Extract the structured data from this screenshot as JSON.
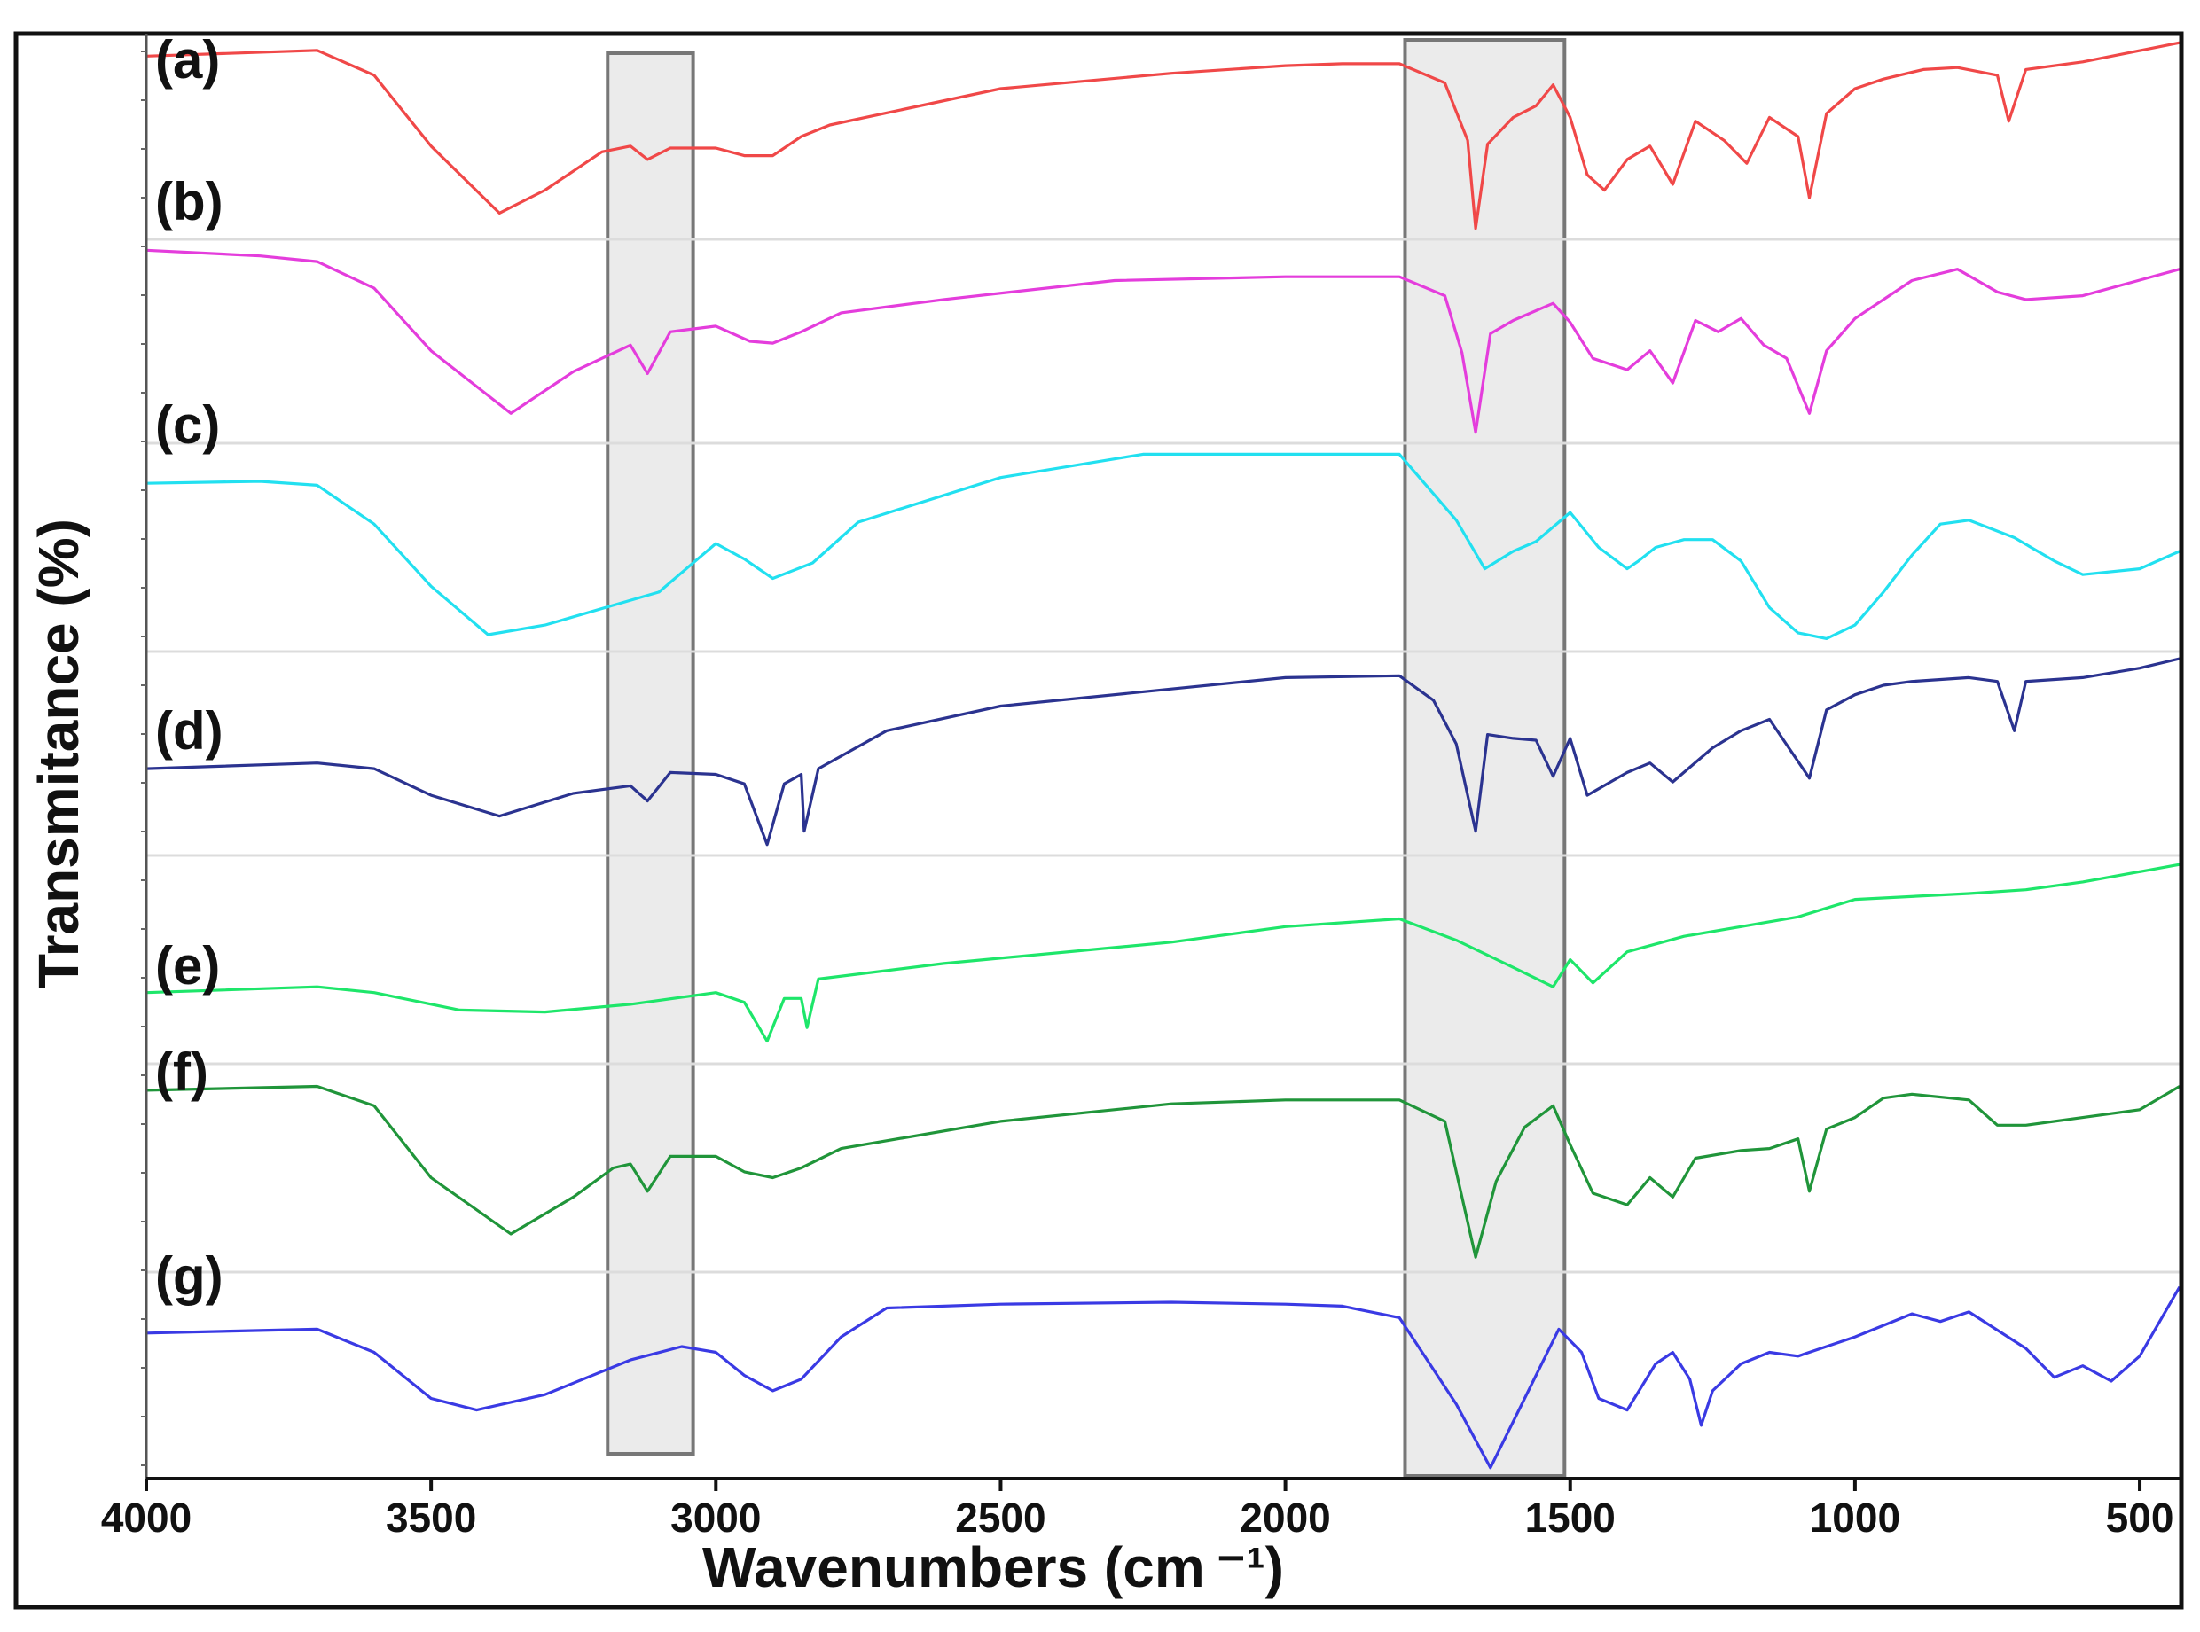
{
  "chart_data": {
    "type": "line",
    "xlabel": "Wavenumbers (cm ⁻¹)",
    "ylabel": "Transmitance (%)",
    "xlim": [
      4000,
      430
    ],
    "x_reversed": true,
    "x_ticks": [
      4000,
      3500,
      3000,
      2500,
      2000,
      1500,
      1000,
      500
    ],
    "grid": "horizontal separators between stacked spectra",
    "highlight_bands": [
      {
        "x_from": 3190,
        "x_to": 3040
      },
      {
        "x_from": 1790,
        "x_to": 1510
      }
    ],
    "series": [
      {
        "name": "(a)",
        "color": "#f04848",
        "points": [
          [
            4000,
            0.92
          ],
          [
            3700,
            0.95
          ],
          [
            3600,
            0.82
          ],
          [
            3500,
            0.45
          ],
          [
            3380,
            0.1
          ],
          [
            3300,
            0.22
          ],
          [
            3200,
            0.42
          ],
          [
            3150,
            0.45
          ],
          [
            3120,
            0.38
          ],
          [
            3080,
            0.44
          ],
          [
            3000,
            0.44
          ],
          [
            2950,
            0.4
          ],
          [
            2900,
            0.4
          ],
          [
            2850,
            0.5
          ],
          [
            2800,
            0.56
          ],
          [
            2500,
            0.75
          ],
          [
            2200,
            0.83
          ],
          [
            2000,
            0.87
          ],
          [
            1900,
            0.88
          ],
          [
            1800,
            0.88
          ],
          [
            1720,
            0.78
          ],
          [
            1680,
            0.48
          ],
          [
            1666,
            0.02
          ],
          [
            1645,
            0.46
          ],
          [
            1600,
            0.6
          ],
          [
            1560,
            0.66
          ],
          [
            1530,
            0.77
          ],
          [
            1500,
            0.6
          ],
          [
            1470,
            0.3
          ],
          [
            1440,
            0.22
          ],
          [
            1400,
            0.38
          ],
          [
            1360,
            0.45
          ],
          [
            1320,
            0.25
          ],
          [
            1280,
            0.58
          ],
          [
            1230,
            0.48
          ],
          [
            1190,
            0.36
          ],
          [
            1150,
            0.6
          ],
          [
            1100,
            0.5
          ],
          [
            1080,
            0.18
          ],
          [
            1050,
            0.62
          ],
          [
            1000,
            0.75
          ],
          [
            950,
            0.8
          ],
          [
            880,
            0.85
          ],
          [
            820,
            0.86
          ],
          [
            750,
            0.82
          ],
          [
            730,
            0.58
          ],
          [
            700,
            0.85
          ],
          [
            600,
            0.89
          ],
          [
            430,
            0.99
          ]
        ]
      },
      {
        "name": "(b)",
        "color": "#e43ddc",
        "points": [
          [
            4000,
            0.98
          ],
          [
            3800,
            0.95
          ],
          [
            3700,
            0.92
          ],
          [
            3600,
            0.78
          ],
          [
            3500,
            0.45
          ],
          [
            3360,
            0.12
          ],
          [
            3250,
            0.34
          ],
          [
            3150,
            0.48
          ],
          [
            3120,
            0.33
          ],
          [
            3080,
            0.55
          ],
          [
            3000,
            0.58
          ],
          [
            2940,
            0.5
          ],
          [
            2900,
            0.49
          ],
          [
            2850,
            0.55
          ],
          [
            2780,
            0.65
          ],
          [
            2600,
            0.72
          ],
          [
            2300,
            0.82
          ],
          [
            2000,
            0.84
          ],
          [
            1800,
            0.84
          ],
          [
            1720,
            0.74
          ],
          [
            1690,
            0.44
          ],
          [
            1666,
            0.02
          ],
          [
            1640,
            0.54
          ],
          [
            1600,
            0.61
          ],
          [
            1530,
            0.7
          ],
          [
            1500,
            0.6
          ],
          [
            1460,
            0.41
          ],
          [
            1400,
            0.35
          ],
          [
            1360,
            0.45
          ],
          [
            1320,
            0.28
          ],
          [
            1280,
            0.61
          ],
          [
            1240,
            0.55
          ],
          [
            1200,
            0.62
          ],
          [
            1160,
            0.48
          ],
          [
            1120,
            0.41
          ],
          [
            1080,
            0.12
          ],
          [
            1050,
            0.45
          ],
          [
            1000,
            0.62
          ],
          [
            900,
            0.82
          ],
          [
            820,
            0.88
          ],
          [
            750,
            0.76
          ],
          [
            700,
            0.72
          ],
          [
            600,
            0.74
          ],
          [
            430,
            0.88
          ]
        ]
      },
      {
        "name": "(c)",
        "color": "#22e0f0",
        "points": [
          [
            4000,
            0.83
          ],
          [
            3800,
            0.84
          ],
          [
            3700,
            0.82
          ],
          [
            3600,
            0.62
          ],
          [
            3500,
            0.3
          ],
          [
            3400,
            0.05
          ],
          [
            3300,
            0.1
          ],
          [
            3100,
            0.27
          ],
          [
            3000,
            0.52
          ],
          [
            2950,
            0.44
          ],
          [
            2900,
            0.34
          ],
          [
            2830,
            0.42
          ],
          [
            2750,
            0.63
          ],
          [
            2500,
            0.86
          ],
          [
            2250,
            0.98
          ],
          [
            2000,
            0.98
          ],
          [
            1800,
            0.98
          ],
          [
            1700,
            0.64
          ],
          [
            1650,
            0.39
          ],
          [
            1600,
            0.48
          ],
          [
            1560,
            0.53
          ],
          [
            1500,
            0.68
          ],
          [
            1450,
            0.5
          ],
          [
            1400,
            0.39
          ],
          [
            1380,
            0.43
          ],
          [
            1350,
            0.5
          ],
          [
            1300,
            0.54
          ],
          [
            1250,
            0.54
          ],
          [
            1200,
            0.43
          ],
          [
            1150,
            0.19
          ],
          [
            1100,
            0.06
          ],
          [
            1050,
            0.03
          ],
          [
            1000,
            0.1
          ],
          [
            950,
            0.27
          ],
          [
            900,
            0.46
          ],
          [
            850,
            0.62
          ],
          [
            800,
            0.64
          ],
          [
            720,
            0.55
          ],
          [
            650,
            0.43
          ],
          [
            600,
            0.36
          ],
          [
            500,
            0.39
          ],
          [
            430,
            0.48
          ]
        ]
      },
      {
        "name": "(d)",
        "color": "#2b3390",
        "points": [
          [
            4000,
            0.42
          ],
          [
            3700,
            0.45
          ],
          [
            3600,
            0.42
          ],
          [
            3500,
            0.28
          ],
          [
            3380,
            0.17
          ],
          [
            3250,
            0.29
          ],
          [
            3150,
            0.33
          ],
          [
            3120,
            0.25
          ],
          [
            3080,
            0.4
          ],
          [
            3000,
            0.39
          ],
          [
            2950,
            0.34
          ],
          [
            2910,
            0.02
          ],
          [
            2880,
            0.34
          ],
          [
            2850,
            0.39
          ],
          [
            2845,
            0.09
          ],
          [
            2820,
            0.42
          ],
          [
            2700,
            0.62
          ],
          [
            2500,
            0.75
          ],
          [
            2200,
            0.84
          ],
          [
            2000,
            0.9
          ],
          [
            1800,
            0.91
          ],
          [
            1740,
            0.78
          ],
          [
            1700,
            0.55
          ],
          [
            1666,
            0.09
          ],
          [
            1645,
            0.6
          ],
          [
            1600,
            0.58
          ],
          [
            1560,
            0.57
          ],
          [
            1530,
            0.38
          ],
          [
            1500,
            0.58
          ],
          [
            1470,
            0.28
          ],
          [
            1400,
            0.4
          ],
          [
            1360,
            0.45
          ],
          [
            1320,
            0.35
          ],
          [
            1250,
            0.53
          ],
          [
            1200,
            0.62
          ],
          [
            1150,
            0.68
          ],
          [
            1080,
            0.37
          ],
          [
            1050,
            0.73
          ],
          [
            1000,
            0.81
          ],
          [
            950,
            0.86
          ],
          [
            900,
            0.88
          ],
          [
            800,
            0.9
          ],
          [
            750,
            0.88
          ],
          [
            720,
            0.62
          ],
          [
            700,
            0.88
          ],
          [
            600,
            0.9
          ],
          [
            500,
            0.95
          ],
          [
            430,
            1.0
          ]
        ]
      },
      {
        "name": "(e)",
        "color": "#1ee66a",
        "points": [
          [
            4000,
            0.33
          ],
          [
            3700,
            0.36
          ],
          [
            3600,
            0.33
          ],
          [
            3450,
            0.24
          ],
          [
            3300,
            0.23
          ],
          [
            3150,
            0.27
          ],
          [
            3000,
            0.33
          ],
          [
            2950,
            0.28
          ],
          [
            2910,
            0.08
          ],
          [
            2880,
            0.3
          ],
          [
            2850,
            0.3
          ],
          [
            2840,
            0.15
          ],
          [
            2820,
            0.4
          ],
          [
            2600,
            0.48
          ],
          [
            2200,
            0.59
          ],
          [
            2000,
            0.67
          ],
          [
            1800,
            0.71
          ],
          [
            1700,
            0.6
          ],
          [
            1600,
            0.46
          ],
          [
            1530,
            0.36
          ],
          [
            1500,
            0.5
          ],
          [
            1460,
            0.38
          ],
          [
            1400,
            0.54
          ],
          [
            1300,
            0.62
          ],
          [
            1200,
            0.67
          ],
          [
            1100,
            0.72
          ],
          [
            1000,
            0.81
          ],
          [
            800,
            0.84
          ],
          [
            700,
            0.86
          ],
          [
            600,
            0.9
          ],
          [
            430,
            0.99
          ]
        ]
      },
      {
        "name": "(f)",
        "color": "#20953a",
        "points": [
          [
            4000,
            0.9
          ],
          [
            3700,
            0.92
          ],
          [
            3600,
            0.82
          ],
          [
            3500,
            0.45
          ],
          [
            3360,
            0.16
          ],
          [
            3250,
            0.35
          ],
          [
            3180,
            0.5
          ],
          [
            3150,
            0.52
          ],
          [
            3120,
            0.38
          ],
          [
            3080,
            0.56
          ],
          [
            3000,
            0.56
          ],
          [
            2950,
            0.48
          ],
          [
            2900,
            0.45
          ],
          [
            2850,
            0.5
          ],
          [
            2780,
            0.6
          ],
          [
            2500,
            0.74
          ],
          [
            2200,
            0.83
          ],
          [
            2000,
            0.85
          ],
          [
            1800,
            0.85
          ],
          [
            1720,
            0.74
          ],
          [
            1666,
            0.04
          ],
          [
            1630,
            0.43
          ],
          [
            1580,
            0.71
          ],
          [
            1530,
            0.82
          ],
          [
            1500,
            0.62
          ],
          [
            1460,
            0.37
          ],
          [
            1400,
            0.31
          ],
          [
            1360,
            0.45
          ],
          [
            1320,
            0.35
          ],
          [
            1280,
            0.55
          ],
          [
            1200,
            0.59
          ],
          [
            1150,
            0.6
          ],
          [
            1100,
            0.65
          ],
          [
            1080,
            0.38
          ],
          [
            1050,
            0.7
          ],
          [
            1000,
            0.76
          ],
          [
            950,
            0.86
          ],
          [
            900,
            0.88
          ],
          [
            800,
            0.85
          ],
          [
            750,
            0.72
          ],
          [
            700,
            0.72
          ],
          [
            600,
            0.76
          ],
          [
            500,
            0.8
          ],
          [
            430,
            0.92
          ]
        ]
      },
      {
        "name": "(g)",
        "color": "#3a3ae4",
        "points": [
          [
            4000,
            0.72
          ],
          [
            3700,
            0.74
          ],
          [
            3600,
            0.62
          ],
          [
            3500,
            0.38
          ],
          [
            3420,
            0.32
          ],
          [
            3300,
            0.4
          ],
          [
            3150,
            0.58
          ],
          [
            3060,
            0.65
          ],
          [
            3000,
            0.62
          ],
          [
            2950,
            0.5
          ],
          [
            2900,
            0.42
          ],
          [
            2850,
            0.48
          ],
          [
            2780,
            0.7
          ],
          [
            2700,
            0.85
          ],
          [
            2500,
            0.87
          ],
          [
            2200,
            0.88
          ],
          [
            2000,
            0.87
          ],
          [
            1900,
            0.86
          ],
          [
            1800,
            0.8
          ],
          [
            1700,
            0.35
          ],
          [
            1640,
            0.02
          ],
          [
            1580,
            0.38
          ],
          [
            1520,
            0.74
          ],
          [
            1480,
            0.62
          ],
          [
            1450,
            0.38
          ],
          [
            1400,
            0.32
          ],
          [
            1350,
            0.56
          ],
          [
            1320,
            0.62
          ],
          [
            1290,
            0.48
          ],
          [
            1270,
            0.24
          ],
          [
            1250,
            0.42
          ],
          [
            1200,
            0.56
          ],
          [
            1150,
            0.62
          ],
          [
            1100,
            0.6
          ],
          [
            1000,
            0.7
          ],
          [
            900,
            0.82
          ],
          [
            850,
            0.78
          ],
          [
            800,
            0.83
          ],
          [
            700,
            0.64
          ],
          [
            650,
            0.49
          ],
          [
            600,
            0.55
          ],
          [
            550,
            0.47
          ],
          [
            500,
            0.6
          ],
          [
            430,
            0.96
          ]
        ]
      }
    ]
  }
}
